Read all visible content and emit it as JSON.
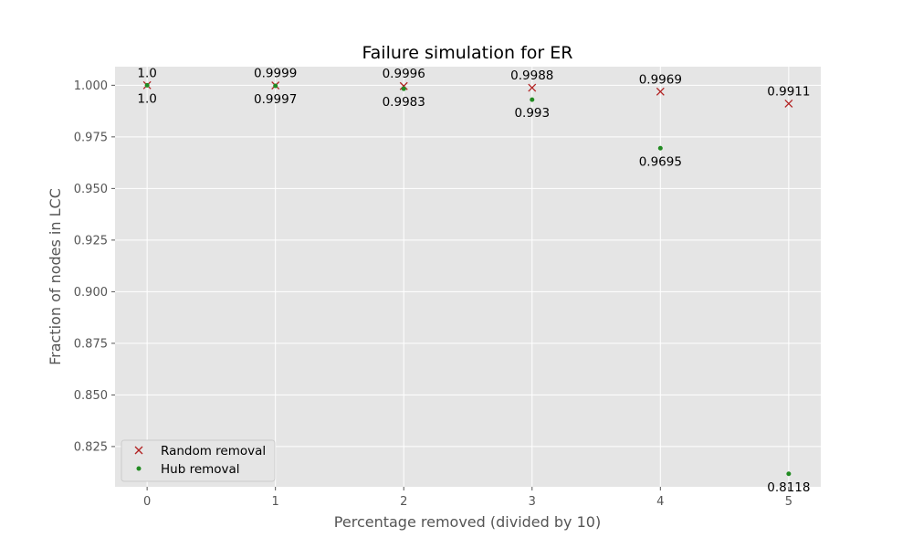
{
  "chart_data": {
    "type": "scatter",
    "title": "Failure simulation for ER",
    "xlabel": "Percentage removed (divided by 10)",
    "ylabel": "Fraction of nodes in LCC",
    "xlim": [
      -0.25,
      5.25
    ],
    "ylim": [
      0.8055,
      1.009
    ],
    "xticks": [
      0,
      1,
      2,
      3,
      4,
      5
    ],
    "yticks": [
      0.825,
      0.85,
      0.875,
      0.9,
      0.925,
      0.95,
      0.975,
      1.0
    ],
    "ytick_labels": [
      "0.825",
      "0.850",
      "0.875",
      "0.900",
      "0.925",
      "0.950",
      "0.975",
      "1.000"
    ],
    "grid": true,
    "legend_position": "lower-left",
    "series": [
      {
        "name": "Random removal",
        "marker": "x",
        "color": "#b22222",
        "x": [
          0,
          1,
          2,
          3,
          4,
          5
        ],
        "values": [
          1.0,
          0.9999,
          0.9996,
          0.9988,
          0.9969,
          0.9911
        ],
        "labels": [
          "1.0",
          "0.9999",
          "0.9996",
          "0.9988",
          "0.9969",
          "0.9911"
        ]
      },
      {
        "name": "Hub removal",
        "marker": "dot",
        "color": "#228b22",
        "x": [
          0,
          1,
          2,
          3,
          4,
          5
        ],
        "values": [
          1.0,
          0.9997,
          0.9983,
          0.993,
          0.9695,
          0.8118
        ],
        "labels": [
          "1.0",
          "0.9997",
          "0.9983",
          "0.993",
          "0.9695",
          "0.8118"
        ]
      }
    ],
    "colors": {
      "plot_background": "#e5e5e5",
      "grid": "#ffffff",
      "tick_text": "#555555"
    }
  }
}
